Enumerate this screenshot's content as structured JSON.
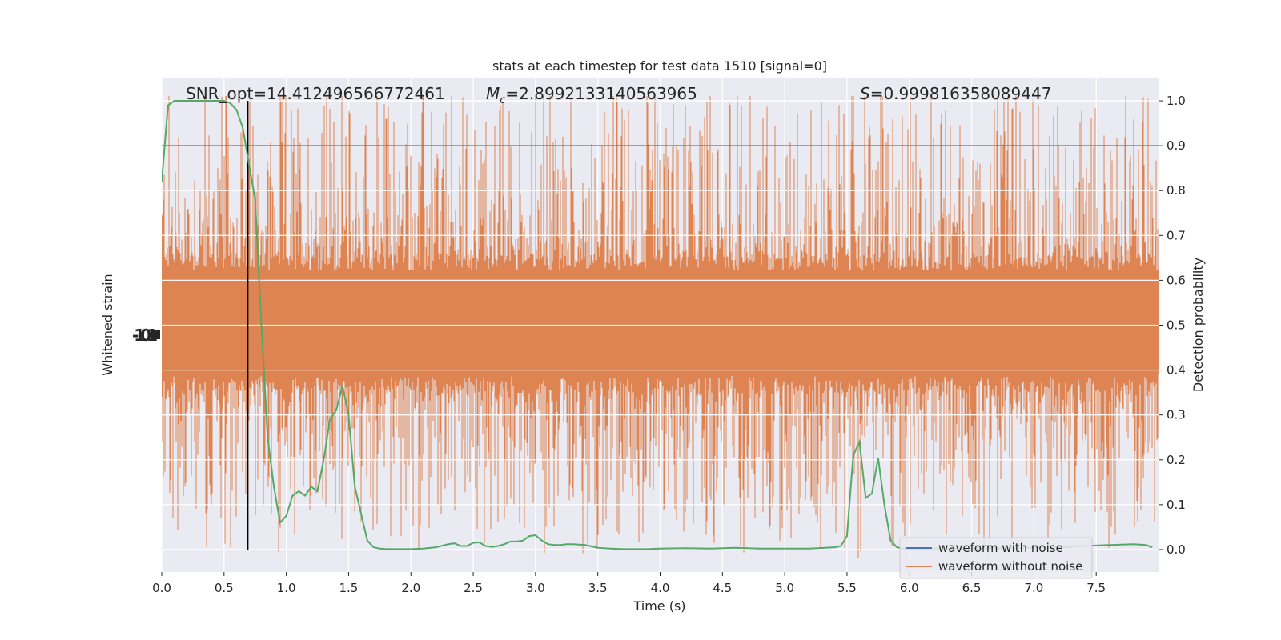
{
  "chart_data": {
    "type": "line",
    "title": "stats at each timestep for test data 1510 [signal=0]",
    "xlabel": "Time (s)",
    "ylabel_left": "Whitened strain",
    "ylabel_right": "Detection probability",
    "xlim": [
      0,
      8
    ],
    "ylim_right": [
      -0.05,
      1.05
    ],
    "x_ticks": [
      "0.0",
      "0.5",
      "1.0",
      "1.5",
      "2.0",
      "2.5",
      "3.0",
      "3.5",
      "4.0",
      "4.5",
      "5.0",
      "5.5",
      "6.0",
      "6.5",
      "7.0",
      "7.5"
    ],
    "y_ticks_right": [
      "0.0",
      "0.1",
      "0.2",
      "0.3",
      "0.4",
      "0.5",
      "0.6",
      "0.7",
      "0.8",
      "0.9",
      "1.0"
    ],
    "grid": true,
    "legend_position": "lower-right",
    "threshold": {
      "value": 0.9,
      "color": "#c44e52"
    },
    "marker_time": 0.69,
    "annotations": {
      "snr": "SNR_opt=14.412496566772461",
      "mc_symbol": "M",
      "mc_sub": "c",
      "mc_value": "=2.8992133140563965",
      "s_symbol": "S",
      "s_value": "=0.999816358089447"
    },
    "series": [
      {
        "name": "waveform with noise",
        "color": "#4c72b0"
      },
      {
        "name": "waveform without noise",
        "color": "#dd8452"
      }
    ],
    "probability": {
      "color": "#55a868",
      "x": [
        0.0,
        0.05,
        0.1,
        0.15,
        0.2,
        0.25,
        0.3,
        0.35,
        0.4,
        0.45,
        0.5,
        0.55,
        0.6,
        0.65,
        0.7,
        0.75,
        0.8,
        0.85,
        0.9,
        0.95,
        1.0,
        1.05,
        1.1,
        1.15,
        1.2,
        1.25,
        1.3,
        1.35,
        1.4,
        1.45,
        1.5,
        1.55,
        1.6,
        1.65,
        1.7,
        1.75,
        1.8,
        1.85,
        1.9,
        1.95,
        2.0,
        2.1,
        2.2,
        2.3,
        2.35,
        2.4,
        2.45,
        2.5,
        2.55,
        2.6,
        2.65,
        2.7,
        2.75,
        2.8,
        2.85,
        2.9,
        2.95,
        3.0,
        3.05,
        3.1,
        3.15,
        3.2,
        3.25,
        3.3,
        3.4,
        3.5,
        3.6,
        3.7,
        3.8,
        3.9,
        4.0,
        4.2,
        4.4,
        4.6,
        4.8,
        5.0,
        5.2,
        5.4,
        5.45,
        5.5,
        5.55,
        5.6,
        5.65,
        5.7,
        5.75,
        5.8,
        5.85,
        5.9,
        5.95,
        6.0,
        6.2,
        6.5,
        6.8,
        7.0,
        7.2,
        7.4,
        7.6,
        7.8,
        7.9,
        7.95
      ],
      "y": [
        0.82,
        0.99,
        1.0,
        1.0,
        1.0,
        1.0,
        1.0,
        1.0,
        1.0,
        1.0,
        1.0,
        0.995,
        0.98,
        0.94,
        0.86,
        0.78,
        0.5,
        0.25,
        0.14,
        0.06,
        0.075,
        0.12,
        0.13,
        0.12,
        0.14,
        0.13,
        0.2,
        0.29,
        0.31,
        0.365,
        0.3,
        0.14,
        0.08,
        0.02,
        0.005,
        0.002,
        0.001,
        0.001,
        0.001,
        0.001,
        0.001,
        0.002,
        0.005,
        0.012,
        0.014,
        0.008,
        0.008,
        0.015,
        0.016,
        0.008,
        0.006,
        0.008,
        0.012,
        0.018,
        0.018,
        0.02,
        0.03,
        0.032,
        0.02,
        0.012,
        0.01,
        0.01,
        0.012,
        0.012,
        0.01,
        0.004,
        0.002,
        0.001,
        0.001,
        0.001,
        0.002,
        0.003,
        0.002,
        0.004,
        0.002,
        0.002,
        0.002,
        0.005,
        0.008,
        0.03,
        0.21,
        0.24,
        0.115,
        0.125,
        0.205,
        0.1,
        0.02,
        0.005,
        0.002,
        0.002,
        0.002,
        0.002,
        0.003,
        0.004,
        0.005,
        0.008,
        0.01,
        0.012,
        0.01,
        0.005
      ]
    }
  }
}
